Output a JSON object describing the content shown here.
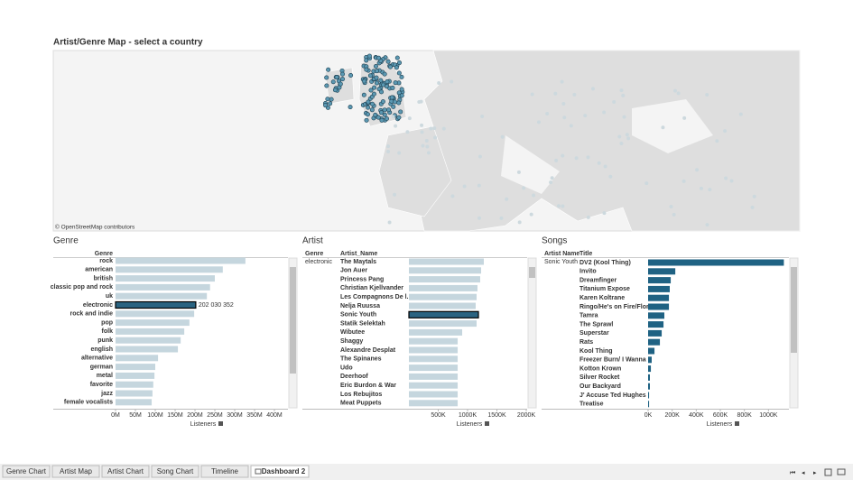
{
  "title": "Artist/Genre Map - select a country",
  "map": {
    "attribution": "© OpenStreetMap contributors"
  },
  "genre_panel": {
    "title": "Genre",
    "columns": [
      "Genre"
    ],
    "axis_title": "Listeners",
    "categories": [
      "rock",
      "american",
      "british",
      "classic pop and rock",
      "uk",
      "electronic",
      "rock and indie",
      "pop",
      "folk",
      "punk",
      "english",
      "alternative",
      "german",
      "metal",
      "favorite",
      "jazz",
      "female vocalists"
    ],
    "values": [
      327000000,
      270000000,
      250000000,
      238000000,
      230000000,
      202030352,
      198000000,
      186000000,
      173000000,
      164000000,
      157000000,
      107000000,
      100000000,
      98000000,
      95000000,
      93000000,
      91000000
    ],
    "value_labels": [
      null,
      null,
      null,
      null,
      null,
      "202 030 352",
      null,
      null,
      null,
      null,
      null,
      null,
      null,
      null,
      null,
      null,
      null
    ],
    "selected": 5,
    "xlim": [
      0,
      400000000
    ],
    "xticks": [
      {
        "value": 0,
        "label": "0M"
      },
      {
        "value": 50000000,
        "label": "50M"
      },
      {
        "value": 100000000,
        "label": "100M"
      },
      {
        "value": 150000000,
        "label": "150M"
      },
      {
        "value": 200000000,
        "label": "200M"
      },
      {
        "value": 250000000,
        "label": "250M"
      },
      {
        "value": 300000000,
        "label": "300M"
      },
      {
        "value": 350000000,
        "label": "350M"
      },
      {
        "value": 400000000,
        "label": "400M"
      }
    ]
  },
  "artist_panel": {
    "title": "Artist",
    "columns": [
      "Genre",
      "Artist_Name"
    ],
    "group": "electronic",
    "axis_title": "Listeners",
    "categories": [
      "The Maytals",
      "Jon Auer",
      "Princess Pang",
      "Christian Kjellvander",
      "Les Compagnons De l...",
      "Nelja Ruussa",
      "Sonic Youth",
      "Statik Selektah",
      "Wibutee",
      "Shaggy",
      "Alexandre Desplat",
      "The Spinanes",
      "Udo",
      "Deerhoof",
      "Eric Burdon & War",
      "Los Rebujitos",
      "Meat Puppets"
    ],
    "values": [
      1277000,
      1231000,
      1215000,
      1169000,
      1154000,
      1138000,
      1185000,
      1154000,
      908000,
      831000,
      831000,
      831000,
      831000,
      831000,
      831000,
      831000,
      831000
    ],
    "selected": 6,
    "xlim": [
      0,
      2000000
    ],
    "xticks": [
      {
        "value": 500000,
        "label": "500K"
      },
      {
        "value": 1000000,
        "label": "1000K"
      },
      {
        "value": 1500000,
        "label": "1500K"
      },
      {
        "value": 2000000,
        "label": "2000K"
      }
    ]
  },
  "songs_panel": {
    "title": "Songs",
    "columns": [
      "Artist Name",
      "Title"
    ],
    "group": "Sonic Youth",
    "axis_title": "Listeners",
    "categories": [
      "DV2 (Kool Thing)",
      "Invito",
      "Dreamfinger",
      "Titanium Expose",
      "Karen Koltrane",
      "Ringo/He's on Fire/Flori...",
      "Tamra",
      "The Sprawl",
      "Superstar",
      "Rats",
      "Kool Thing",
      "Freezer Burn/ I Wanna ..",
      "Kotton Krown",
      "Silver Rocket",
      "Our Backyard",
      "J' Accuse Ted Hughes",
      "Treatise"
    ],
    "values": [
      1128000,
      226000,
      188000,
      180000,
      173000,
      173000,
      135000,
      128000,
      113000,
      98000,
      53000,
      30000,
      23000,
      15000,
      15000,
      8000,
      8000
    ],
    "xlim": [
      0,
      1200000
    ],
    "xticks": [
      {
        "value": 0,
        "label": "0K"
      },
      {
        "value": 200000,
        "label": "200K"
      },
      {
        "value": 400000,
        "label": "400K"
      },
      {
        "value": 600000,
        "label": "600K"
      },
      {
        "value": 800000,
        "label": "800K"
      },
      {
        "value": 1000000,
        "label": "1000K"
      }
    ]
  },
  "tabs": [
    "Genre Chart",
    "Artist Map",
    "Artist Chart",
    "Song Chart",
    "Timeline",
    "Dashboard 2"
  ],
  "active_tab": 5
}
